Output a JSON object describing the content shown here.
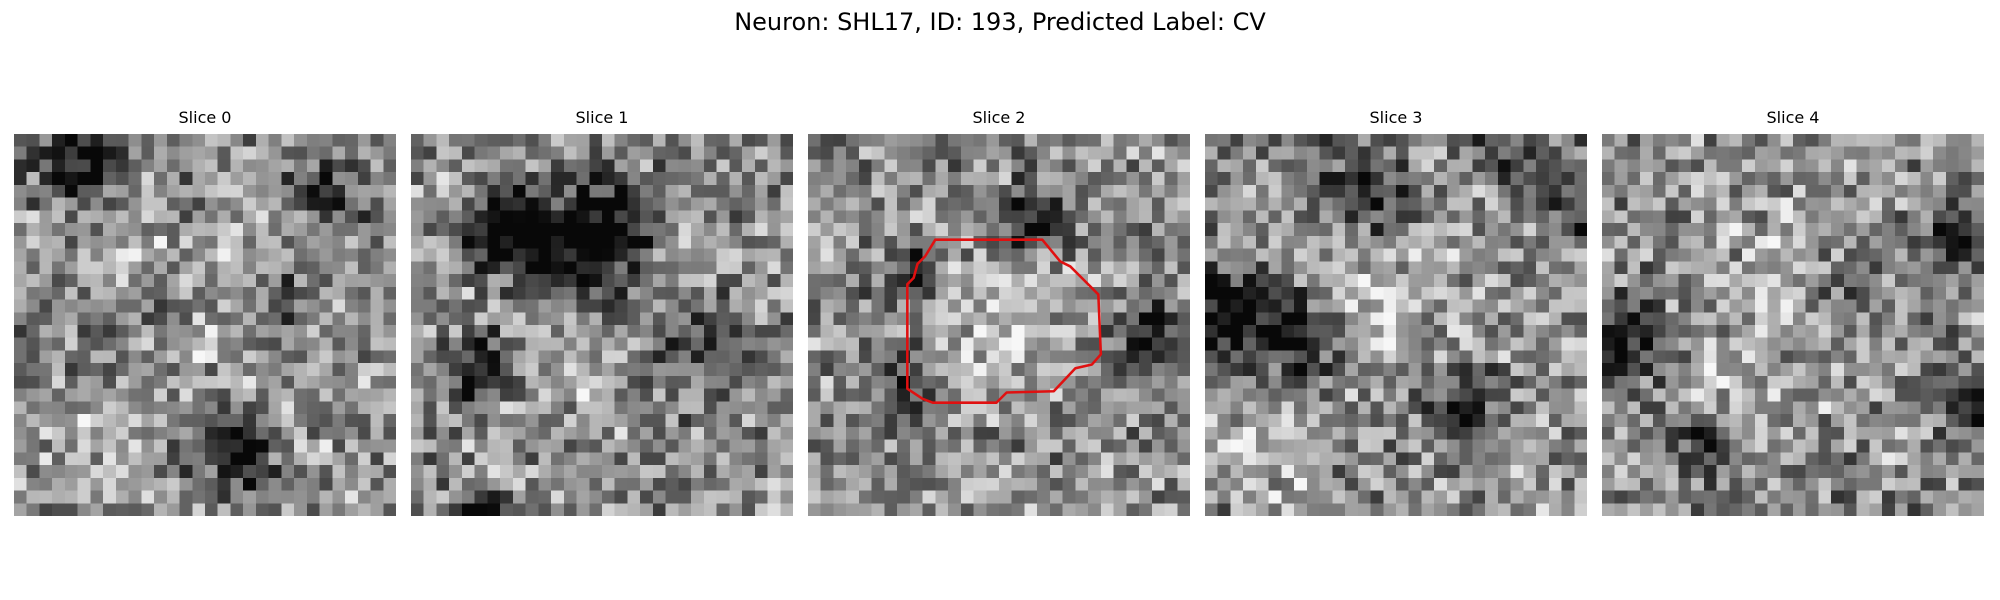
{
  "figure": {
    "title": "Neuron: SHL17, ID: 193, Predicted Label: CV"
  },
  "panels": [
    {
      "title": "Slice 0",
      "seed": 11,
      "dark_blobs": [
        [
          5,
          2,
          2.2,
          0.55
        ],
        [
          24,
          4,
          2.0,
          0.45
        ],
        [
          20,
          13,
          3.0,
          0.35
        ],
        [
          17,
          24,
          2.0,
          0.7
        ],
        [
          9,
          13,
          4.0,
          0.15
        ]
      ],
      "bright_blobs": [
        [
          18,
          14,
          5.0,
          0.22
        ],
        [
          7,
          8,
          3.0,
          0.18
        ],
        [
          6,
          23,
          3.0,
          0.15
        ]
      ]
    },
    {
      "title": "Slice 1",
      "seed": 23,
      "dark_blobs": [
        [
          7,
          7,
          2.2,
          0.7
        ],
        [
          15,
          7,
          2.5,
          0.55
        ],
        [
          5,
          18,
          2.0,
          0.55
        ],
        [
          12,
          10,
          3.5,
          0.3
        ],
        [
          22,
          15,
          3.0,
          0.25
        ],
        [
          5,
          29,
          1.2,
          0.7
        ]
      ],
      "bright_blobs": [
        [
          10,
          18,
          4.0,
          0.15
        ],
        [
          20,
          9,
          3.0,
          0.15
        ]
      ]
    },
    {
      "title": "Slice 2",
      "seed": 37,
      "dark_blobs": [
        [
          8,
          11,
          2.0,
          0.4
        ],
        [
          17,
          6,
          1.8,
          0.5
        ],
        [
          26,
          15,
          2.0,
          0.45
        ],
        [
          7,
          19,
          2.0,
          0.35
        ]
      ],
      "bright_blobs": [
        [
          14,
          14,
          4.5,
          0.22
        ]
      ]
    },
    {
      "title": "Slice 3",
      "seed": 49,
      "dark_blobs": [
        [
          1,
          14,
          2.5,
          0.6
        ],
        [
          7,
          16,
          2.5,
          0.45
        ],
        [
          12,
          4,
          2.5,
          0.4
        ],
        [
          19,
          21,
          2.0,
          0.45
        ],
        [
          28,
          5,
          2.0,
          0.35
        ],
        [
          24,
          1,
          2.0,
          0.35
        ]
      ],
      "bright_blobs": [
        [
          14,
          13,
          4.0,
          0.18
        ],
        [
          5,
          24,
          3.0,
          0.2
        ]
      ]
    },
    {
      "title": "Slice 4",
      "seed": 61,
      "dark_blobs": [
        [
          1,
          16,
          2.5,
          0.45
        ],
        [
          7,
          24,
          2.0,
          0.35
        ],
        [
          29,
          21,
          2.0,
          0.55
        ],
        [
          28,
          8,
          2.0,
          0.4
        ],
        [
          18,
          12,
          2.0,
          0.3
        ]
      ],
      "bright_blobs": [
        [
          14,
          12,
          4.0,
          0.2
        ],
        [
          9,
          21,
          3.0,
          0.15
        ]
      ]
    }
  ],
  "contour": {
    "slice_index": 2,
    "color": "#e01010",
    "points": [
      [
        10.0,
        8.3
      ],
      [
        18.4,
        8.3
      ],
      [
        19.8,
        10.0
      ],
      [
        20.6,
        10.4
      ],
      [
        21.4,
        11.2
      ],
      [
        22.8,
        12.6
      ],
      [
        23.0,
        17.3
      ],
      [
        22.3,
        18.1
      ],
      [
        21.0,
        18.4
      ],
      [
        19.3,
        20.2
      ],
      [
        15.6,
        20.3
      ],
      [
        14.8,
        21.1
      ],
      [
        9.8,
        21.1
      ],
      [
        9.0,
        20.8
      ],
      [
        7.8,
        20.0
      ],
      [
        7.8,
        11.8
      ],
      [
        8.3,
        11.3
      ],
      [
        8.6,
        10.2
      ],
      [
        9.2,
        9.6
      ]
    ]
  }
}
